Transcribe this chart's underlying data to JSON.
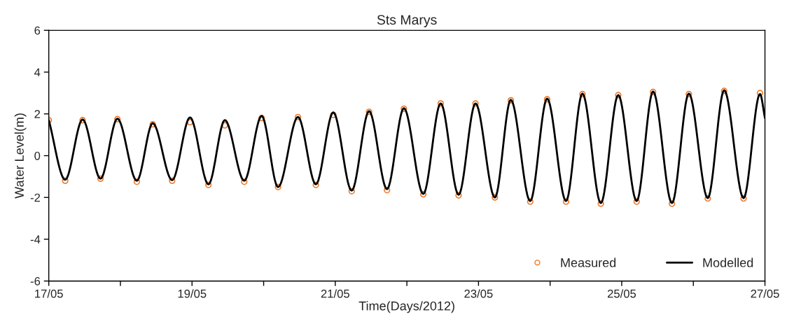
{
  "chart_data": {
    "type": "line",
    "title": "Sts Marys",
    "xlabel": "Time(Days/2012)",
    "ylabel": "Water Level(m)",
    "xlim": [
      "2012-05-17",
      "2012-05-27"
    ],
    "xticks": [
      {
        "value": "2012-05-17",
        "label": "17/05"
      },
      {
        "value": "2012-05-18",
        "label": null
      },
      {
        "value": "2012-05-19",
        "label": "19/05"
      },
      {
        "value": "2012-05-20",
        "label": null
      },
      {
        "value": "2012-05-21",
        "label": "21/05"
      },
      {
        "value": "2012-05-22",
        "label": null
      },
      {
        "value": "2012-05-23",
        "label": "23/05"
      },
      {
        "value": "2012-05-24",
        "label": null
      },
      {
        "value": "2012-05-25",
        "label": "25/05"
      },
      {
        "value": "2012-05-26",
        "label": null
      },
      {
        "value": "2012-05-27",
        "label": "27/05"
      }
    ],
    "ylim": [
      -6,
      6
    ],
    "yticks": [
      -6,
      -4,
      -2,
      0,
      2,
      4,
      6
    ],
    "legend": "bottom right",
    "series": [
      {
        "name": "Measured",
        "type": "scatter",
        "marker": "circle",
        "color": "#ed7d31",
        "x": [
          "2012-05-17T00:00",
          "2012-05-17T05:30",
          "2012-05-17T11:20",
          "2012-05-17T17:20",
          "2012-05-17T23:00",
          "2012-05-18T05:30",
          "2012-05-18T10:50",
          "2012-05-18T17:20",
          "2012-05-18T23:20",
          "2012-05-19T05:30",
          "2012-05-19T11:00",
          "2012-05-19T17:30",
          "2012-05-19T23:20",
          "2012-05-20T04:50",
          "2012-05-20T11:30",
          "2012-05-20T17:30",
          "2012-05-20T23:20",
          "2012-05-21T05:30",
          "2012-05-21T11:20",
          "2012-05-21T17:20",
          "2012-05-21T23:00",
          "2012-05-22T05:30",
          "2012-05-22T11:20",
          "2012-05-22T17:20",
          "2012-05-22T23:00",
          "2012-05-23T05:30",
          "2012-05-23T10:50",
          "2012-05-23T17:20",
          "2012-05-23T23:00",
          "2012-05-24T05:20",
          "2012-05-24T10:50",
          "2012-05-24T17:00",
          "2012-05-24T22:50",
          "2012-05-25T05:00",
          "2012-05-25T10:30",
          "2012-05-25T16:50",
          "2012-05-25T22:30",
          "2012-05-26T04:50",
          "2012-05-26T10:20",
          "2012-05-26T16:50",
          "2012-05-26T22:20"
        ],
        "values": [
          1.7,
          -1.2,
          1.7,
          -1.1,
          1.75,
          -1.25,
          1.5,
          -1.2,
          1.6,
          -1.4,
          1.45,
          -1.25,
          1.8,
          -1.5,
          1.85,
          -1.4,
          1.95,
          -1.7,
          2.1,
          -1.65,
          2.25,
          -1.85,
          2.5,
          -1.9,
          2.5,
          -2.0,
          2.65,
          -2.2,
          2.7,
          -2.2,
          2.95,
          -2.3,
          2.9,
          -2.2,
          3.05,
          -2.3,
          2.95,
          -2.05,
          3.1,
          -2.05,
          3.0
        ]
      },
      {
        "name": "Modelled",
        "color": "#000000",
        "line_style": "solid",
        "x": [
          "2012-05-17T00:00",
          "2012-05-17T05:30",
          "2012-05-17T11:20",
          "2012-05-17T17:20",
          "2012-05-17T23:00",
          "2012-05-18T05:30",
          "2012-05-18T10:50",
          "2012-05-18T17:20",
          "2012-05-18T23:20",
          "2012-05-19T05:30",
          "2012-05-19T11:00",
          "2012-05-19T17:30",
          "2012-05-19T23:20",
          "2012-05-20T04:50",
          "2012-05-20T11:30",
          "2012-05-20T17:30",
          "2012-05-20T23:20",
          "2012-05-21T05:30",
          "2012-05-21T11:20",
          "2012-05-21T17:20",
          "2012-05-21T23:00",
          "2012-05-22T05:30",
          "2012-05-22T11:20",
          "2012-05-22T17:20",
          "2012-05-22T23:00",
          "2012-05-23T05:30",
          "2012-05-23T10:50",
          "2012-05-23T17:20",
          "2012-05-23T23:00",
          "2012-05-24T05:20",
          "2012-05-24T10:50",
          "2012-05-24T17:00",
          "2012-05-24T22:50",
          "2012-05-25T05:00",
          "2012-05-25T10:30",
          "2012-05-25T16:50",
          "2012-05-25T22:30",
          "2012-05-26T04:50",
          "2012-05-26T10:20",
          "2012-05-26T16:50",
          "2012-05-26T22:20",
          "2012-05-27T00:00"
        ],
        "values": [
          1.7,
          -1.15,
          1.73,
          -1.1,
          1.77,
          -1.2,
          1.55,
          -1.17,
          1.83,
          -1.37,
          1.7,
          -1.2,
          1.9,
          -1.5,
          1.85,
          -1.37,
          2.07,
          -1.67,
          2.13,
          -1.6,
          2.27,
          -1.83,
          2.5,
          -1.87,
          2.5,
          -2.0,
          2.67,
          -2.17,
          2.73,
          -2.17,
          2.97,
          -2.27,
          2.9,
          -2.17,
          3.07,
          -2.27,
          2.97,
          -2.03,
          3.13,
          -2.03,
          2.95,
          1.8
        ]
      }
    ]
  }
}
